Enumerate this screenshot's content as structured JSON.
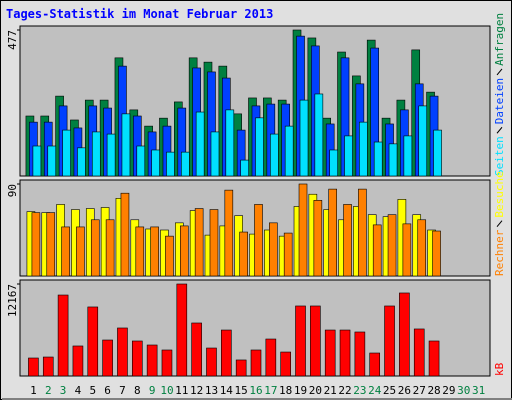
{
  "chart_data": [
    {
      "type": "bar",
      "title": "Tages-Statistik im Monat Februar 2013",
      "ylim": [
        0,
        477
      ],
      "yticks": [
        477
      ],
      "series": [
        {
          "name": "Anfragen",
          "color": "#008040",
          "values": [
            196,
            196,
            261,
            183,
            248,
            248,
            386,
            216,
            163,
            189,
            242,
            386,
            372,
            359,
            203,
            255,
            255,
            248,
            477,
            451,
            189,
            405,
            327,
            444,
            189,
            248,
            412,
            274,
            null,
            null,
            null
          ]
        },
        {
          "name": "Dateien",
          "color": "#0040ff",
          "values": [
            176,
            176,
            229,
            157,
            229,
            222,
            359,
            196,
            144,
            163,
            222,
            353,
            340,
            320,
            150,
            229,
            235,
            235,
            457,
            425,
            170,
            386,
            301,
            418,
            170,
            216,
            301,
            261,
            null,
            null,
            null
          ]
        },
        {
          "name": "Seiten",
          "color": "#00e0ff",
          "values": [
            98,
            98,
            150,
            92,
            144,
            137,
            203,
            98,
            85,
            78,
            78,
            209,
            144,
            216,
            52,
            190,
            137,
            163,
            248,
            268,
            85,
            131,
            176,
            111,
            105,
            131,
            229,
            150,
            null,
            null,
            null
          ]
        }
      ]
    },
    {
      "type": "bar",
      "ylim": [
        0,
        90
      ],
      "yticks": [
        90
      ],
      "series": [
        {
          "name": "Besuche",
          "color": "#ffff00",
          "values": [
            63,
            62,
            70,
            65,
            66,
            67,
            76,
            55,
            46,
            45,
            52,
            64,
            40,
            49,
            59,
            41,
            45,
            39,
            68,
            80,
            65,
            55,
            68,
            60,
            58,
            75,
            60,
            45,
            null,
            null,
            null
          ]
        },
        {
          "name": "Rechner",
          "color": "#ff8000",
          "values": [
            62,
            62,
            48,
            48,
            55,
            55,
            81,
            48,
            48,
            39,
            49,
            66,
            65,
            84,
            43,
            70,
            52,
            42,
            90,
            74,
            85,
            70,
            85,
            50,
            60,
            51,
            55,
            44,
            null,
            null,
            null
          ]
        }
      ]
    },
    {
      "type": "bar",
      "ylim": [
        0,
        12167
      ],
      "yticks": [
        12167
      ],
      "series": [
        {
          "name": "kB",
          "color": "#ff0000",
          "values": [
            2380,
            2510,
            10710,
            3970,
            9130,
            4760,
            6350,
            4630,
            4100,
            3440,
            12167,
            7010,
            3700,
            6080,
            2120,
            3440,
            4890,
            3170,
            9260,
            9260,
            6080,
            6080,
            5820,
            3040,
            9260,
            10980,
            6220,
            4630,
            null,
            null,
            null
          ]
        }
      ],
      "categories": [
        "1",
        "2",
        "3",
        "4",
        "5",
        "6",
        "7",
        "8",
        "9",
        "10",
        "11",
        "12",
        "13",
        "14",
        "15",
        "16",
        "17",
        "18",
        "19",
        "20",
        "21",
        "22",
        "23",
        "24",
        "25",
        "26",
        "27",
        "28",
        "29",
        "30",
        "31"
      ],
      "category_colors": [
        "#000000",
        "#008040",
        "#008040",
        "#000000",
        "#000000",
        "#000000",
        "#000000",
        "#000000",
        "#008040",
        "#008040",
        "#000000",
        "#000000",
        "#000000",
        "#000000",
        "#000000",
        "#008040",
        "#008040",
        "#000000",
        "#000000",
        "#000000",
        "#000000",
        "#000000",
        "#008040",
        "#008040",
        "#000000",
        "#000000",
        "#000000",
        "#000000",
        "#000000",
        "#008040",
        "#008040"
      ]
    }
  ]
}
